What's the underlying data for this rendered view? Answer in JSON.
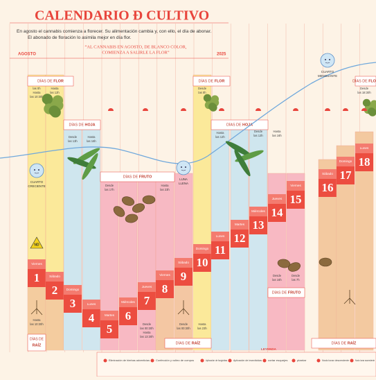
{
  "header": {
    "title": "CALENDARIO Ð CULTIVO",
    "subtitle_lines": [
      "En agosto el cannabis comienza a florecer. Su alimentación cambia y, con ello, el día de abonar.",
      "El abonado de floración lo asimila mejor en día flor."
    ],
    "quote_lines": [
      "“AL CANNABIS EN AGOSTO, DE BLANCO COLOR,",
      "COMIENZA A SALIRLE LA FLOR”"
    ],
    "month": "AGOSTO",
    "year": "2025"
  },
  "days": [
    {
      "number": 1,
      "weekday": "Viernes",
      "phase": "flor"
    },
    {
      "number": 2,
      "weekday": "Sábado",
      "phase": "flor"
    },
    {
      "number": 3,
      "weekday": "Domingo",
      "phase": "hoja"
    },
    {
      "number": 4,
      "weekday": "Lunes",
      "phase": "hoja"
    },
    {
      "number": 5,
      "weekday": "Martes",
      "phase": "fruto"
    },
    {
      "number": 6,
      "weekday": "Miércoles",
      "phase": "fruto"
    },
    {
      "number": 7,
      "weekday": "Jueves",
      "phase": "fruto"
    },
    {
      "number": 8,
      "weekday": "Viernes",
      "phase": "fruto"
    },
    {
      "number": 9,
      "weekday": "Sábado",
      "phase": "fruto"
    },
    {
      "number": 10,
      "weekday": "Domingo",
      "phase": "flor"
    },
    {
      "number": 11,
      "weekday": "Lunes",
      "phase": "hoja"
    },
    {
      "number": 12,
      "weekday": "Martes",
      "phase": "hoja"
    },
    {
      "number": 13,
      "weekday": "Miércoles",
      "phase": "hoja"
    },
    {
      "number": 14,
      "weekday": "Jueves",
      "phase": "fruto"
    },
    {
      "number": 15,
      "weekday": "Viernes",
      "phase": "fruto"
    },
    {
      "number": 16,
      "weekday": "Sábado",
      "phase": "raiz"
    },
    {
      "number": 17,
      "weekday": "Domingo",
      "phase": "raiz"
    },
    {
      "number": 18,
      "weekday": "Lunes",
      "phase": "raiz"
    }
  ],
  "phase_labels": [
    {
      "prefix": "DÍAS DE",
      "name": "FLOR"
    },
    {
      "prefix": "DÍAS DE",
      "name": "HOJA"
    },
    {
      "prefix": "DÍAS DE",
      "name": "FRUTO"
    },
    {
      "prefix": "DÍAS DE",
      "name": "FLOR"
    },
    {
      "prefix": "DÍAS DE",
      "name": "HOJA"
    },
    {
      "prefix": "DÍAS DE",
      "name": "FRUTO"
    },
    {
      "prefix": "DÍAS DE",
      "name": "RAÍZ"
    },
    {
      "prefix": "DÍAS DE",
      "name": "RAÍZ"
    },
    {
      "prefix": "DÍAS DE",
      "name": "RAÍZ"
    },
    {
      "prefix": "DÍAS DE",
      "name": "FLOR"
    }
  ],
  "moons": [
    {
      "lines": [
        "CUARTO",
        "CRECIENTE"
      ]
    },
    {
      "lines": [
        "LUNA",
        "LLENA"
      ]
    },
    {
      "lines": [
        "CUARTO",
        "MENGUANTE"
      ]
    }
  ],
  "times": [
    [
      "las 0h",
      "Hasta",
      "las 10:30h"
    ],
    [
      "Hasta",
      "las 12h"
    ],
    [
      "Desde",
      "las 13h"
    ],
    [
      "Hasta",
      "las 16h"
    ],
    [
      "Desde",
      "las 17h"
    ],
    [
      "Hasta",
      "las 23h"
    ],
    [
      "Desde",
      "las 0h"
    ],
    [
      "Hasta",
      "las 12h"
    ],
    [
      "Desde",
      "las 13h"
    ],
    [
      "Hasta",
      "las 16h"
    ],
    [
      "Desde",
      "las 16h"
    ],
    [
      "Desde",
      "las 7h"
    ],
    [
      "Desde",
      "las 00:30h",
      "Hasta",
      "las 13:30h"
    ],
    [
      "Desde",
      "las 00:30h"
    ],
    [
      "Hasta",
      "las 23h"
    ],
    [
      "Hasta",
      "las 10:30h"
    ],
    [
      "Desde",
      "las 18:30h"
    ]
  ],
  "nd_badge": "ND",
  "legend": {
    "title": "LEYENDA",
    "items": [
      "Eliminación de hierbas adventicias",
      "Confección y volteo de compos",
      "Aplicación de fungicidas",
      "Aplicación de insecticidas",
      "cortar esquejes",
      "plantar",
      "Nodo lunar descendente",
      "Nodo lunar ascendente"
    ]
  }
}
